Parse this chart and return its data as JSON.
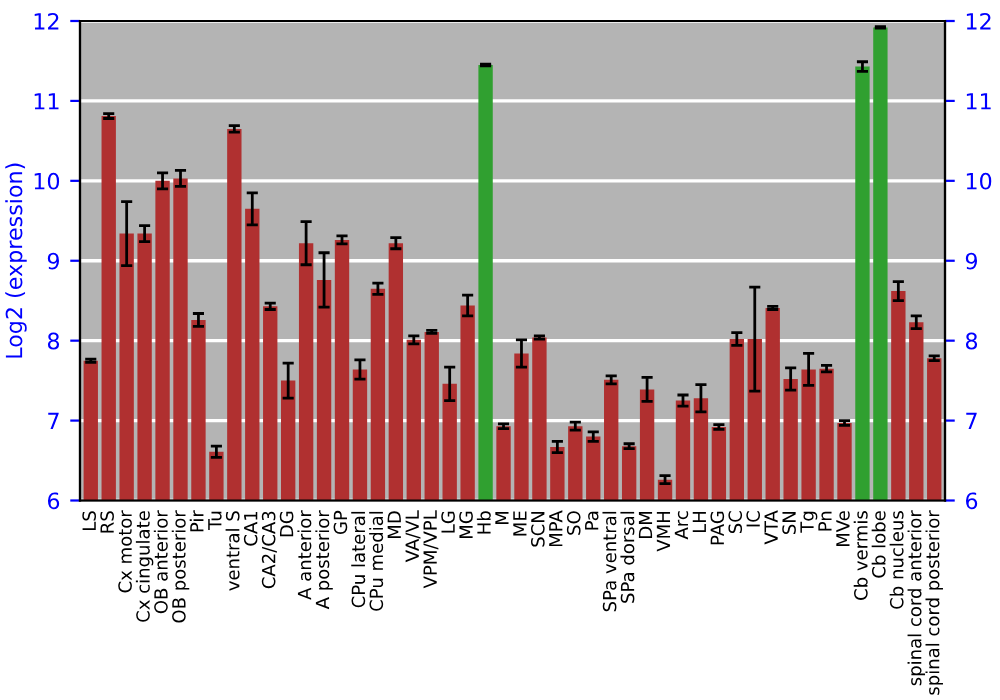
{
  "chart_data": {
    "type": "bar",
    "ylabel": "Log2 (expression)",
    "categories": [
      "LS",
      "RS",
      "Cx motor",
      "Cx cingulate",
      "OB anterior",
      "OB posterior",
      "Pir",
      "Tu",
      "ventral S",
      "CA1",
      "CA2/CA3",
      "DG",
      "A anterior",
      "A posterior",
      "GP",
      "CPu lateral",
      "CPu medial",
      "MD",
      "VA/VL",
      "VPM/VPL",
      "LG",
      "MG",
      "Hb",
      "M",
      "ME",
      "SCN",
      "MPA",
      "SO",
      "Pa",
      "SPa ventral",
      "SPa dorsal",
      "DM",
      "VMH",
      "Arc",
      "LH",
      "PAG",
      "SC",
      "IC",
      "VTA",
      "SN",
      "Tg",
      "Pn",
      "MVe",
      "Cb vermis",
      "Cb lobe",
      "Cb nucleus",
      "spinal cord anterior",
      "spinal cord posterior"
    ],
    "values": [
      7.75,
      10.81,
      9.34,
      9.34,
      10.0,
      10.03,
      8.26,
      6.61,
      10.65,
      9.65,
      8.43,
      7.5,
      9.22,
      8.76,
      9.26,
      7.64,
      8.65,
      9.22,
      8.01,
      8.11,
      7.46,
      8.44,
      11.45,
      6.93,
      7.84,
      8.04,
      6.67,
      6.93,
      6.8,
      7.51,
      6.68,
      7.39,
      6.26,
      7.25,
      7.28,
      6.92,
      8.02,
      8.02,
      8.41,
      7.52,
      7.64,
      7.65,
      6.97,
      11.43,
      11.92,
      8.62,
      8.23,
      7.78
    ],
    "errors": [
      0.02,
      0.03,
      0.4,
      0.1,
      0.1,
      0.1,
      0.08,
      0.07,
      0.04,
      0.2,
      0.04,
      0.22,
      0.27,
      0.34,
      0.05,
      0.12,
      0.07,
      0.07,
      0.05,
      0.02,
      0.21,
      0.13,
      0.01,
      0.03,
      0.17,
      0.02,
      0.07,
      0.05,
      0.06,
      0.05,
      0.03,
      0.15,
      0.05,
      0.07,
      0.17,
      0.03,
      0.08,
      0.65,
      0.02,
      0.14,
      0.2,
      0.04,
      0.03,
      0.06,
      0.01,
      0.12,
      0.08,
      0.03
    ],
    "colors": [
      "#b03030",
      "#b03030",
      "#b03030",
      "#b03030",
      "#b03030",
      "#b03030",
      "#b03030",
      "#b03030",
      "#b03030",
      "#b03030",
      "#b03030",
      "#b03030",
      "#b03030",
      "#b03030",
      "#b03030",
      "#b03030",
      "#b03030",
      "#b03030",
      "#b03030",
      "#b03030",
      "#b03030",
      "#b03030",
      "#30a030",
      "#b03030",
      "#b03030",
      "#b03030",
      "#b03030",
      "#b03030",
      "#b03030",
      "#b03030",
      "#b03030",
      "#b03030",
      "#b03030",
      "#b03030",
      "#b03030",
      "#b03030",
      "#b03030",
      "#b03030",
      "#b03030",
      "#b03030",
      "#b03030",
      "#b03030",
      "#b03030",
      "#30a030",
      "#30a030",
      "#b03030",
      "#b03030",
      "#b03030"
    ],
    "ylim": [
      6,
      12
    ],
    "yticks": [
      6,
      7,
      8,
      9,
      10,
      11,
      12
    ],
    "y2lim": [
      6,
      12
    ],
    "y2ticks": [
      6,
      7,
      8,
      9,
      10,
      11,
      12
    ],
    "grid": "y"
  }
}
